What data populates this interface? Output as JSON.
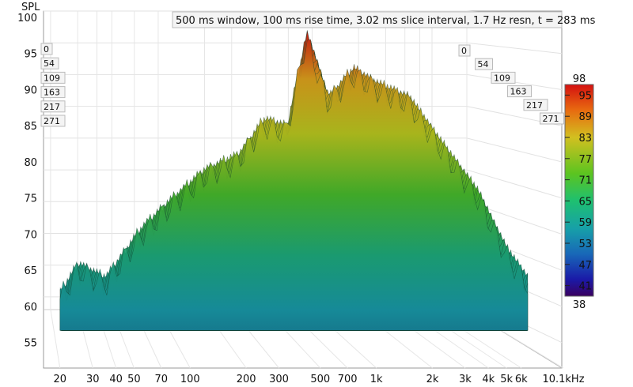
{
  "chart_data": {
    "type": "waterfall",
    "title": "500 ms window, 100 ms rise time, 3.02 ms slice interval, 1.7 Hz resn, t = 283 ms",
    "ylabel": "SPL",
    "ylim": [
      53,
      100
    ],
    "yticks": [
      "100",
      "95",
      "90",
      "85",
      "80",
      "75",
      "70",
      "65",
      "60",
      "55"
    ],
    "xlim": [
      18,
      10100
    ],
    "xticks": [
      {
        "label": "20",
        "hz": 20
      },
      {
        "label": "30",
        "hz": 30
      },
      {
        "label": "40",
        "hz": 40
      },
      {
        "label": "50",
        "hz": 50
      },
      {
        "label": "70",
        "hz": 70
      },
      {
        "label": "100",
        "hz": 100
      },
      {
        "label": "200",
        "hz": 200
      },
      {
        "label": "300",
        "hz": 300
      },
      {
        "label": "500",
        "hz": 500
      },
      {
        "label": "700",
        "hz": 700
      },
      {
        "label": "1k",
        "hz": 1000
      },
      {
        "label": "2k",
        "hz": 2000
      },
      {
        "label": "3k",
        "hz": 3000
      },
      {
        "label": "4k",
        "hz": 4000
      },
      {
        "label": "5k",
        "hz": 5000
      },
      {
        "label": "6k",
        "hz": 6000
      },
      {
        "label": "10.1kHz",
        "hz": 10100
      }
    ],
    "time_ticks": [
      "0",
      "54",
      "109",
      "163",
      "217",
      "271"
    ],
    "colorbar": {
      "min_label": "38",
      "max_label": "98",
      "ticks": [
        "95",
        "89",
        "83",
        "77",
        "71",
        "65",
        "59",
        "53",
        "47",
        "41"
      ]
    },
    "slices": [
      {
        "time_ms": 0,
        "peaks": [
          {
            "hz": 20,
            "spl": 61
          },
          {
            "hz": 25,
            "spl": 65
          },
          {
            "hz": 35,
            "spl": 63
          },
          {
            "hz": 55,
            "spl": 70
          },
          {
            "hz": 80,
            "spl": 74
          },
          {
            "hz": 120,
            "spl": 78
          },
          {
            "hz": 180,
            "spl": 80
          },
          {
            "hz": 250,
            "spl": 85
          },
          {
            "hz": 330,
            "spl": 84
          },
          {
            "hz": 420,
            "spl": 97
          },
          {
            "hz": 550,
            "spl": 88
          },
          {
            "hz": 750,
            "spl": 92
          },
          {
            "hz": 1000,
            "spl": 90
          },
          {
            "hz": 1500,
            "spl": 88
          },
          {
            "hz": 2200,
            "spl": 82
          },
          {
            "hz": 3500,
            "spl": 75
          },
          {
            "hz": 5000,
            "spl": 67
          },
          {
            "hz": 6500,
            "spl": 63
          }
        ]
      }
    ]
  }
}
